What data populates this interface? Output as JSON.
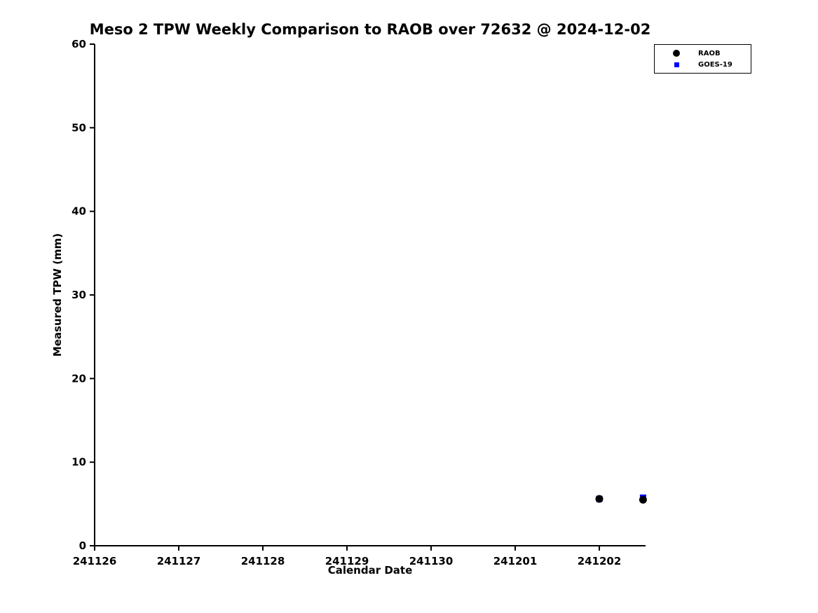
{
  "chart_data": {
    "type": "scatter",
    "title": "Meso 2 TPW Weekly Comparison to RAOB over 72632 @ 2024-12-02",
    "xlabel": "Calendar Date",
    "ylabel": "Measured TPW (mm)",
    "x_tick_labels": [
      "241126",
      "241127",
      "241128",
      "241129",
      "241130",
      "241201",
      "241202"
    ],
    "x_axis": {
      "min_index": 0,
      "max_index": 6.55
    },
    "ylim": [
      0,
      60
    ],
    "y_ticks": [
      0,
      10,
      20,
      30,
      40,
      50,
      60
    ],
    "grid": false,
    "legend_position": "top-right",
    "axis_color": "#000000",
    "series": [
      {
        "name": "GOES-19",
        "marker": "square",
        "color": "#0000ff",
        "points": [
          {
            "x_index": 6.0,
            "date": "241202",
            "y": 5.6
          },
          {
            "x_index": 6.52,
            "date": "241202",
            "y": 5.75
          }
        ]
      },
      {
        "name": "RAOB",
        "marker": "circle",
        "color": "#000000",
        "points": [
          {
            "x_index": 6.0,
            "date": "241202",
            "y": 5.6
          },
          {
            "x_index": 6.52,
            "date": "241202",
            "y": 5.5
          }
        ]
      }
    ],
    "legend_order": [
      "RAOB",
      "GOES-19"
    ]
  }
}
